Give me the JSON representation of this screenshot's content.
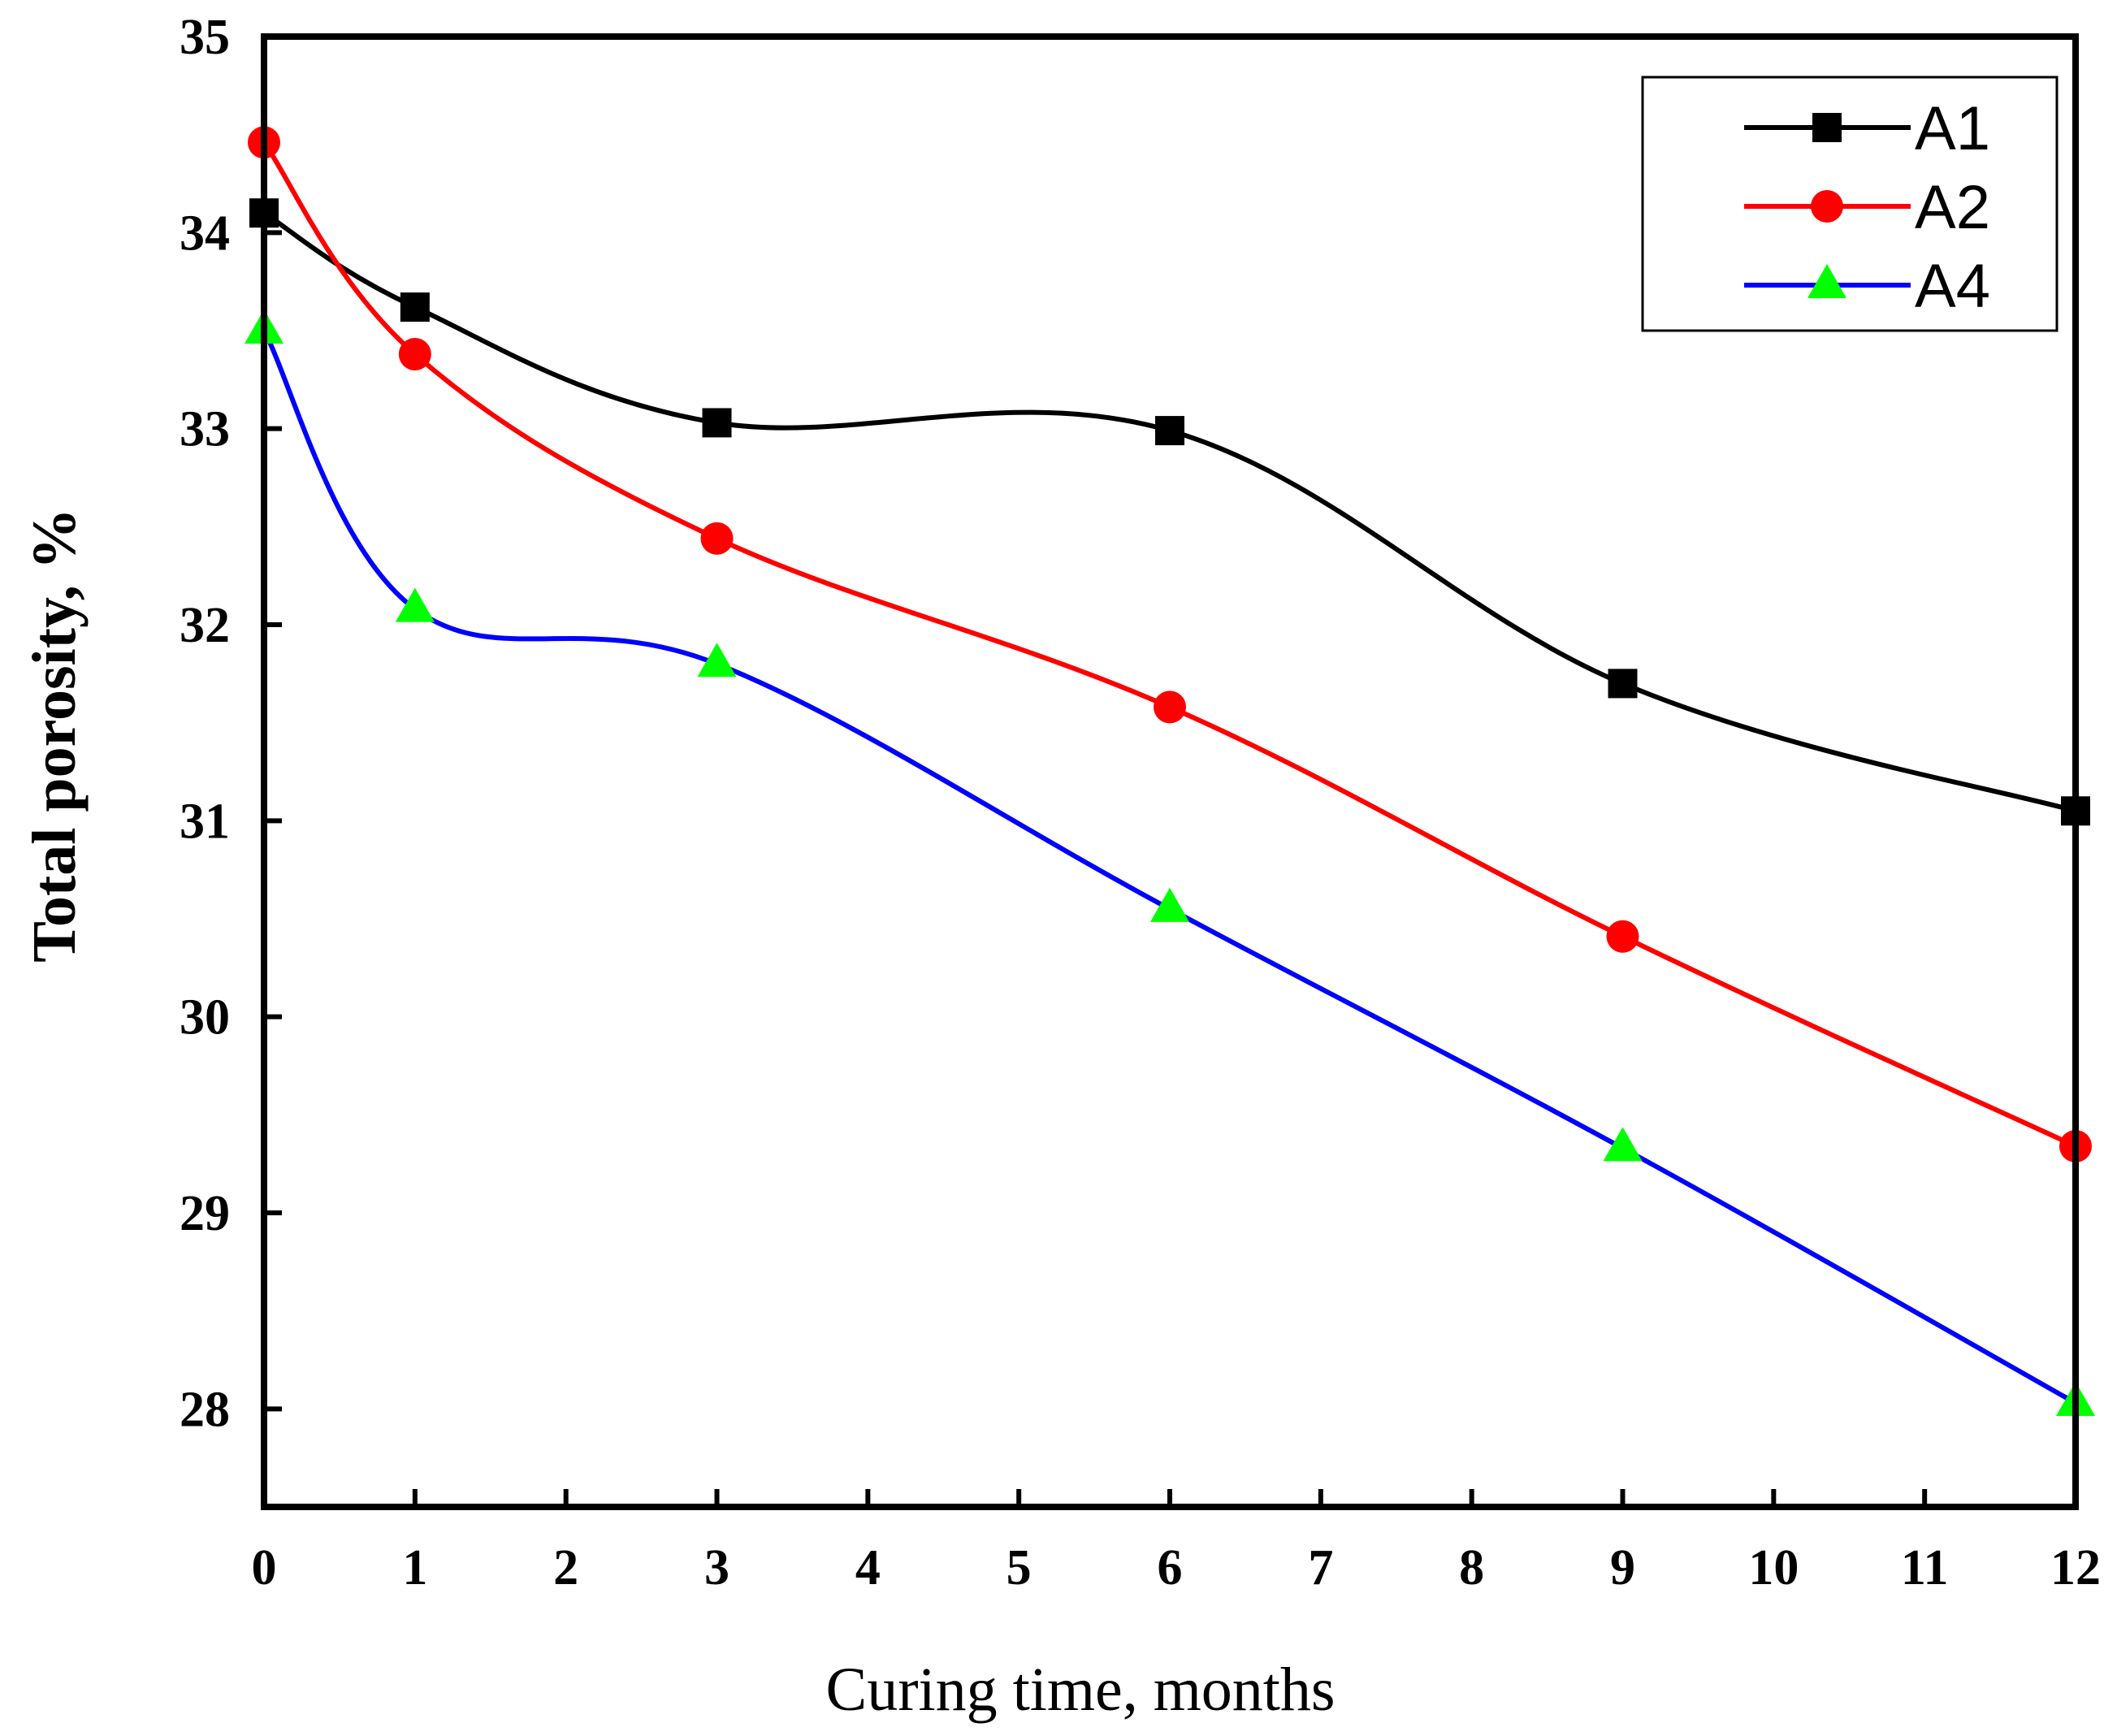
{
  "chart_data": {
    "type": "line",
    "title": "",
    "xlabel": "Curing time, months",
    "ylabel": "Total porosity, %",
    "xlim": [
      0,
      12
    ],
    "ylim": [
      27.5,
      35
    ],
    "xticks": [
      0,
      1,
      2,
      3,
      4,
      5,
      6,
      7,
      8,
      9,
      10,
      11,
      12
    ],
    "yticks": [
      28,
      29,
      30,
      31,
      32,
      33,
      34,
      35
    ],
    "grid": false,
    "legend_position": "top-right",
    "series": [
      {
        "name": "A1",
        "color": "#000000",
        "marker": "square",
        "x": [
          0,
          1,
          3,
          6,
          9,
          12
        ],
        "y": [
          34.1,
          33.62,
          33.03,
          32.99,
          31.7,
          31.05
        ]
      },
      {
        "name": "A2",
        "color": "#ff0000",
        "marker": "circle",
        "x": [
          0,
          1,
          3,
          6,
          9,
          12
        ],
        "y": [
          34.46,
          33.38,
          32.44,
          31.58,
          30.41,
          29.34
        ]
      },
      {
        "name": "A4",
        "color": "#0000ff",
        "marker_color": "#00ff00",
        "marker": "triangle",
        "x": [
          0,
          1,
          3,
          6,
          9,
          12
        ],
        "y": [
          33.5,
          32.08,
          31.8,
          30.55,
          29.33,
          28.03
        ]
      }
    ]
  }
}
